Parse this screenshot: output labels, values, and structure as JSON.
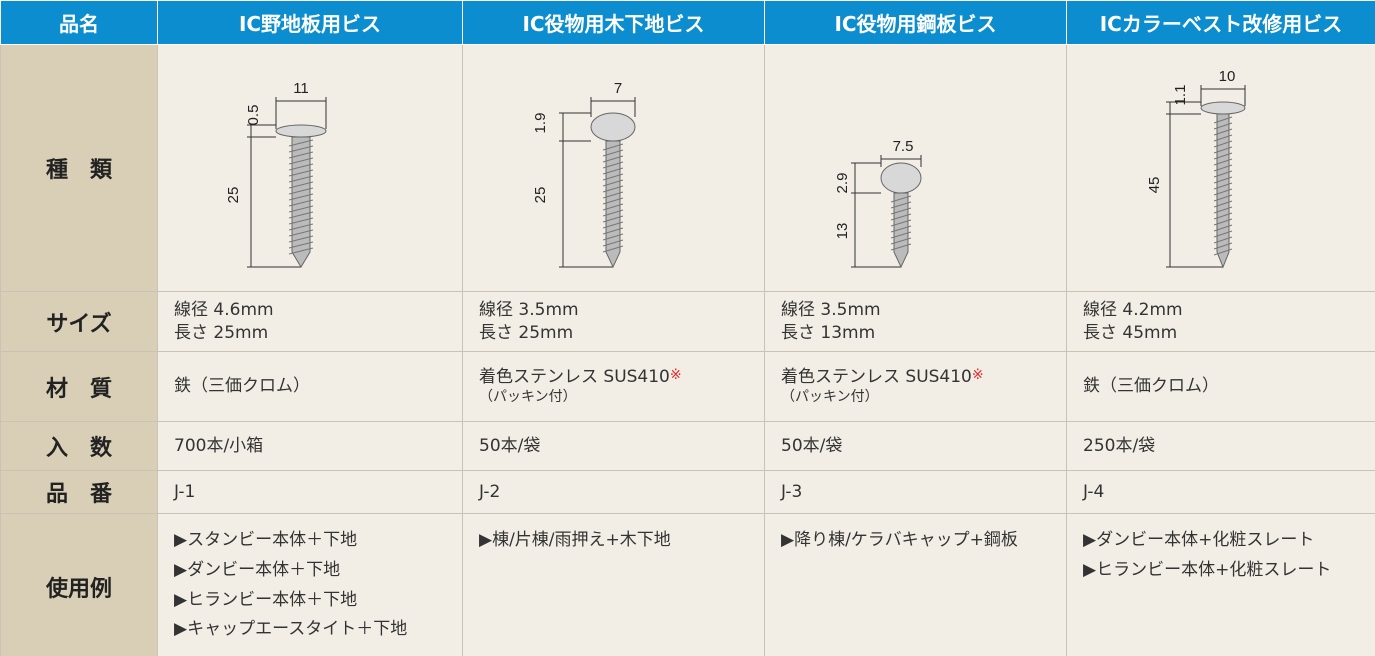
{
  "table": {
    "header": [
      "品名",
      "IC野地板用ビス",
      "IC役物用木下地ビス",
      "IC役物用鋼板ビス",
      "ICカラーベスト改修用ビス"
    ],
    "image_row": {
      "label": "種　類",
      "images": [
        {
          "dims": [
            "11",
            "0.5",
            "25"
          ]
        },
        {
          "dims": [
            "7",
            "1.9",
            "25"
          ]
        },
        {
          "dims": [
            "7.5",
            "2.9",
            "13"
          ]
        },
        {
          "dims": [
            "10",
            "1.1",
            "45"
          ]
        }
      ]
    },
    "rows": [
      [
        "サイズ",
        [
          "線径 4.6mm",
          "長さ 25mm"
        ],
        [
          "線径 3.5mm",
          "長さ 25mm"
        ],
        [
          "線径 3.5mm",
          "長さ 13mm"
        ],
        [
          "線径 4.2mm",
          "長さ 45mm"
        ]
      ],
      [
        "材　質",
        [
          "鉄（三価クロム）"
        ],
        {
          "text": "着色ステンレス SUS410",
          "mark": "※",
          "sub": "（パッキン付）"
        },
        {
          "text": "着色ステンレス SUS410",
          "mark": "※",
          "sub": "（パッキン付）"
        },
        [
          "鉄（三価クロム）"
        ]
      ],
      [
        "入　数",
        [
          "700本/小箱"
        ],
        [
          "50本/袋"
        ],
        [
          "50本/袋"
        ],
        [
          "250本/袋"
        ]
      ],
      [
        "品　番",
        [
          "J-1"
        ],
        [
          "J-2"
        ],
        [
          "J-3"
        ],
        [
          "J-4"
        ]
      ],
      [
        "使用例",
        [
          "▶スタンビー本体＋下地",
          "▶ダンビー本体＋下地",
          "▶ヒランビー本体＋下地",
          "▶キャップエースタイト＋下地"
        ],
        [
          "▶棟/片棟/雨押え+木下地"
        ],
        [
          "▶降り棟/ケラバキャップ+鋼板"
        ],
        [
          "▶ダンビー本体+化粧スレート",
          "▶ヒランビー本体+化粧スレート"
        ]
      ]
    ]
  }
}
